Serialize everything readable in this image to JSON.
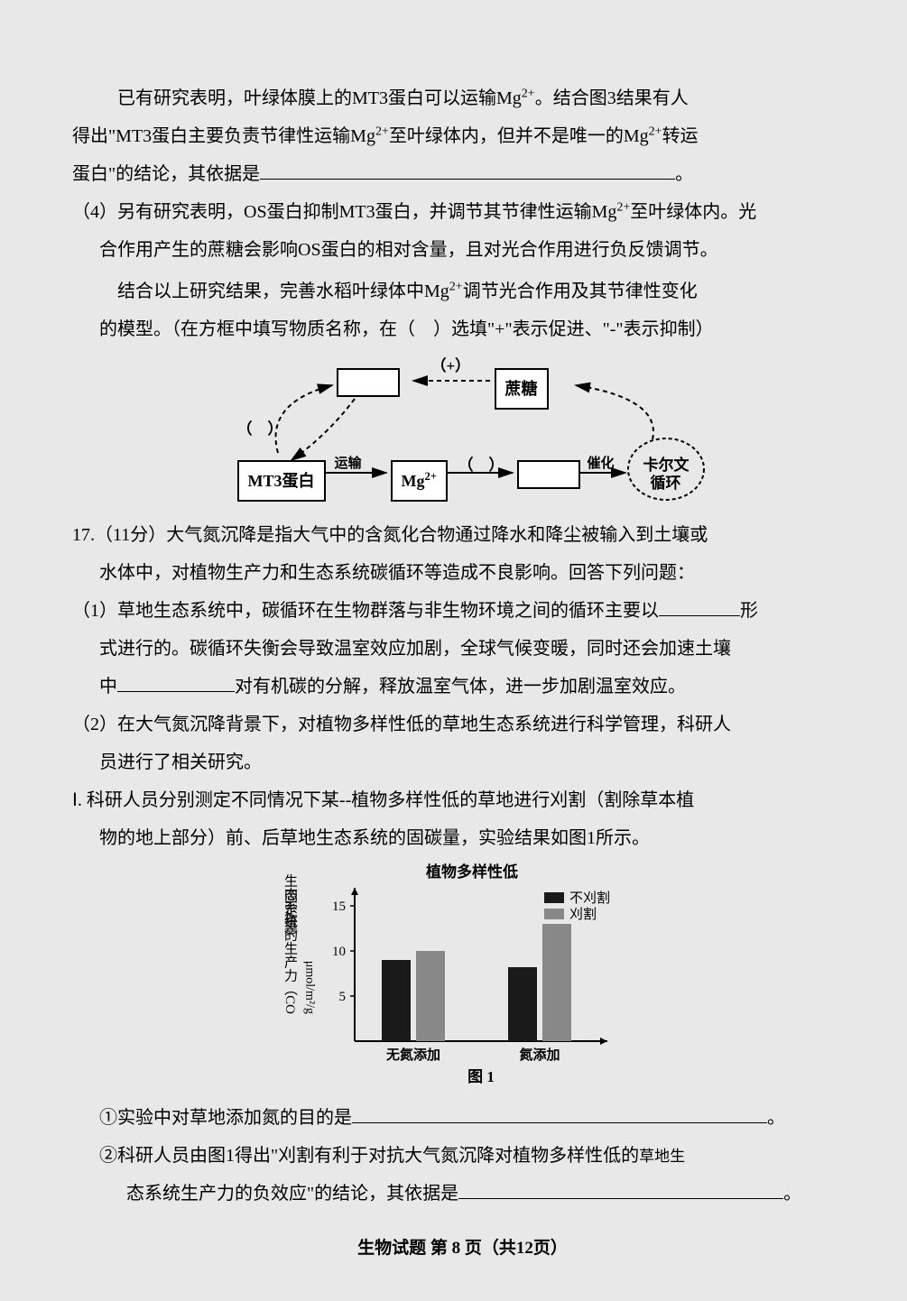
{
  "para1": {
    "line1_pre": "已有研究表明，叶绿体膜上的MT3蛋白可以运输Mg",
    "line1_post": "。结合图3结果有人",
    "line2_pre": "得出\"MT3蛋白主要负责节律性运输Mg",
    "line2_mid": "至叶绿体内，但并不是唯一的Mg",
    "line2_post": "转运",
    "line3": "蛋白\"的结论，其依据是"
  },
  "q4": {
    "prefix": "（4）",
    "line1": "另有研究表明，OS蛋白抑制MT3蛋白，并调节其节律性运输Mg",
    "line1_post": "至叶绿体内。光",
    "line2": "合作用产生的蔗糖会影响OS蛋白的相对含量，且对光合作用进行负反馈调节。",
    "line3_pre": "结合以上研究结果，完善水稻叶绿体中Mg",
    "line3_post": "调节光合作用及其节律性变化",
    "line4": "的模型。（在方框中填写物质名称，在（　）选填\"+\"表示促进、\"-\"表示抑制）"
  },
  "diagram1": {
    "mt3": "MT3蛋白",
    "mg": "Mg",
    "sucrose": "蔗糖",
    "calvin1": "卡尔文",
    "calvin2": "循环",
    "transport": "运输",
    "catalyze": "催化",
    "plus": "（+）",
    "paren1": "（　）",
    "paren2": "（　）"
  },
  "q17": {
    "num": "17.",
    "points": "（11分）",
    "line1": "大气氮沉降是指大气中的含氮化合物通过降水和降尘被输入到土壤或",
    "line2": "水体中，对植物生产力和生态系统碳循环等造成不良影响。回答下列问题："
  },
  "q17_1": {
    "prefix": "（1）",
    "line1_pre": "草地生态系统中，碳循环在生物群落与非生物环境之间的循环主要以",
    "line1_post": "形",
    "line2_pre": "式进行的。碳循环失衡会导致温室效应加剧，全球气候变暖，同时还会加速土壤",
    "line3_pre": "中",
    "line3_post": "对有机碳的分解，释放温室气体，进一步加剧温室效应。"
  },
  "q17_2": {
    "prefix": "（2）",
    "line1": "在大气氮沉降背景下，对植物多样性低的草地生态系统进行科学管理，科研人",
    "line2": "员进行了相关研究。"
  },
  "q17_I": {
    "prefix": "Ⅰ.",
    "line1": "科研人员分别测定不同情况下某--植物多样性低的草地进行刈割（割除草本植",
    "line2": "物的地上部分）前、后草地生态系统的固碳量，实验结果如图1所示。"
  },
  "chart": {
    "title": "植物多样性低",
    "ylabel1": "生态系统的生产力（CO",
    "ylabel2": "固定量）",
    "yunit": "μmol/m²/g",
    "legend_no": "不刈割",
    "legend_yes": "刈割",
    "xcat1": "无氮添加",
    "xcat2": "氮添加",
    "caption": "图 1",
    "yticks": [
      5,
      10,
      15
    ],
    "values_no": [
      9,
      8.2
    ],
    "values_yes": [
      10,
      13
    ],
    "colors": {
      "bar_no": "#1a1a1a",
      "bar_yes": "#888888",
      "axis": "#000000"
    }
  },
  "q17_sub1": {
    "prefix": "①",
    "text": "实验中对草地添加氮的目的是"
  },
  "q17_sub2": {
    "prefix": "②",
    "line1": "科研人员由图1得出\"刈割有利于对抗大气氮沉降对植物多样性低的",
    "line1_post": "草地生",
    "line2": "态系统生产力的负效应\"的结论，其依据是"
  },
  "footer": {
    "pre": "生物试题 第",
    "num": "8",
    "post": "页（共12页）"
  }
}
